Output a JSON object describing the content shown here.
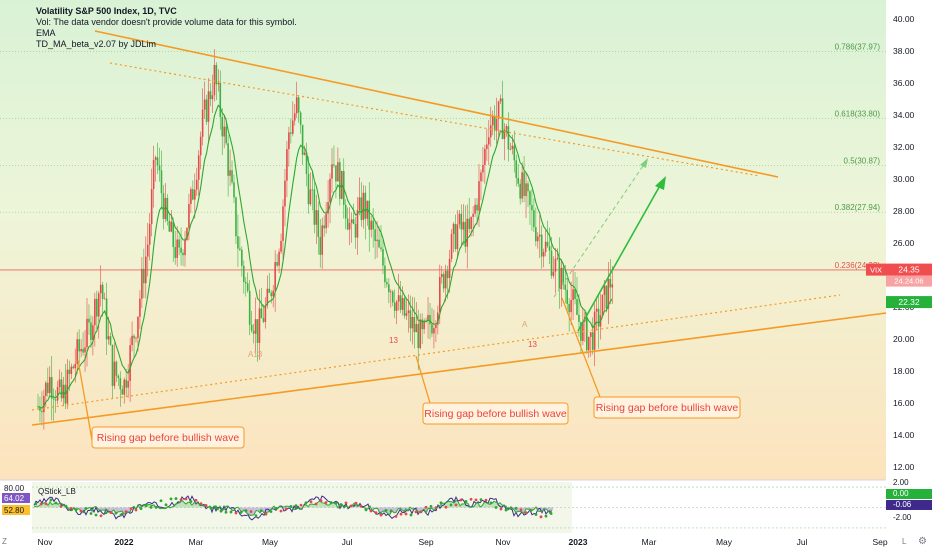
{
  "legend": {
    "title": "Volatility S&P 500 Index, 1D, TVC",
    "line2": "Vol: The data vendor doesn't provide volume data for this symbol.",
    "line3": "EMA",
    "line4": "TD_MA_beta_v2.07 by JDLim"
  },
  "oscillator": {
    "label": "QStick_LB",
    "left_values": [
      "80.00",
      "64.02",
      "52.80"
    ],
    "right_values": [
      "2.00",
      "0.00",
      "-0.06",
      "-2.00"
    ]
  },
  "price_badges": {
    "vix_label": "VIX",
    "vix_value": "24.35",
    "vix_sub": "24.24.06",
    "ema_value": "22.32"
  },
  "icons": {
    "zoom": "Z",
    "log": "L",
    "gear": "gear-icon"
  },
  "chart_data": {
    "type": "candlestick",
    "y_ticks": [
      "40.00",
      "38.00",
      "36.00",
      "34.00",
      "32.00",
      "30.00",
      "28.00",
      "26.00",
      "24.00",
      "22.00",
      "20.00",
      "18.00",
      "16.00",
      "14.00",
      "12.00"
    ],
    "ylim": [
      11.2,
      41.2
    ],
    "x_ticks": [
      "Nov",
      "2022",
      "Mar",
      "May",
      "Jul",
      "Sep",
      "Nov",
      "2023",
      "Mar",
      "May",
      "Jul",
      "Sep"
    ],
    "xlim_month_index": [
      0,
      22.5
    ],
    "fib_levels": [
      {
        "label": "0.786(37.97)",
        "value": 37.97
      },
      {
        "label": "0.618(33.80)",
        "value": 33.8
      },
      {
        "label": "0.5(30.87)",
        "value": 30.87
      },
      {
        "label": "0.382(27.94)",
        "value": 27.94
      },
      {
        "label": "0.236(24.33)",
        "value": 24.33
      }
    ],
    "annotations": [
      {
        "text": "Rising gap before bullish wave"
      },
      {
        "text": "Rising gap before bullish wave"
      },
      {
        "text": "Rising gap before bullish wave"
      }
    ],
    "markers": [
      {
        "text": "A13"
      },
      {
        "text": "13"
      },
      {
        "text": "13"
      },
      {
        "text": "A"
      }
    ],
    "price_path_monthly": [
      [
        0.0,
        15.8
      ],
      [
        0.3,
        17.5
      ],
      [
        0.6,
        16.2
      ],
      [
        1.0,
        19.0
      ],
      [
        1.3,
        20.5
      ],
      [
        1.6,
        23.5
      ],
      [
        1.9,
        18.0
      ],
      [
        2.2,
        17.2
      ],
      [
        2.5,
        21.0
      ],
      [
        2.8,
        26.0
      ],
      [
        3.0,
        31.5
      ],
      [
        3.3,
        27.0
      ],
      [
        3.6,
        25.0
      ],
      [
        3.9,
        28.5
      ],
      [
        4.2,
        33.5
      ],
      [
        4.5,
        36.5
      ],
      [
        4.8,
        32.0
      ],
      [
        5.1,
        26.0
      ],
      [
        5.4,
        22.0
      ],
      [
        5.6,
        20.5
      ],
      [
        5.9,
        22.5
      ],
      [
        6.2,
        27.0
      ],
      [
        6.4,
        33.0
      ],
      [
        6.6,
        34.5
      ],
      [
        6.9,
        29.5
      ],
      [
        7.2,
        26.0
      ],
      [
        7.5,
        31.5
      ],
      [
        7.8,
        29.0
      ],
      [
        8.0,
        26.5
      ],
      [
        8.3,
        28.5
      ],
      [
        8.6,
        26.0
      ],
      [
        8.9,
        24.0
      ],
      [
        9.2,
        22.0
      ],
      [
        9.5,
        21.0
      ],
      [
        9.8,
        20.0
      ],
      [
        10.1,
        21.5
      ],
      [
        10.4,
        24.5
      ],
      [
        10.7,
        27.0
      ],
      [
        11.0,
        26.5
      ],
      [
        11.3,
        30.0
      ],
      [
        11.5,
        33.5
      ],
      [
        11.8,
        34.0
      ],
      [
        12.1,
        31.5
      ],
      [
        12.4,
        29.0
      ],
      [
        12.7,
        27.0
      ],
      [
        13.0,
        25.5
      ],
      [
        13.3,
        24.0
      ],
      [
        13.6,
        22.5
      ],
      [
        13.9,
        20.5
      ],
      [
        14.1,
        20.0
      ],
      [
        14.4,
        22.0
      ],
      [
        14.7,
        24.35
      ]
    ]
  }
}
